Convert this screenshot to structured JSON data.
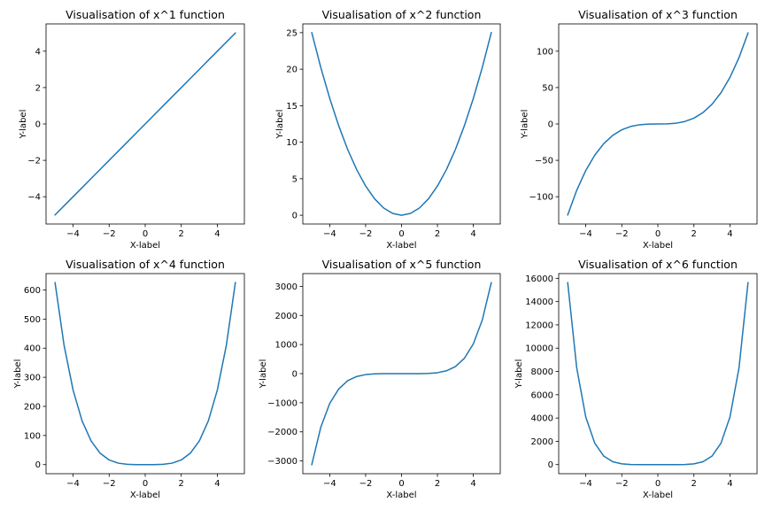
{
  "figure": {
    "background": "#ffffff",
    "line_color": "#1f77b4"
  },
  "chart_data": [
    {
      "type": "line",
      "title": "Visualisation of x^1 function",
      "xlabel": "X-label",
      "ylabel": "Y-label",
      "xlim": [
        -5.5,
        5.5
      ],
      "ylim": [
        -5.5,
        5.5
      ],
      "xticks": [
        -4,
        -2,
        0,
        2,
        4
      ],
      "xtick_labels": [
        "−4",
        "−2",
        "0",
        "2",
        "4"
      ],
      "yticks": [
        -4,
        -2,
        0,
        2,
        4
      ],
      "ytick_labels": [
        "−4",
        "−2",
        "0",
        "2",
        "4"
      ],
      "grid": false,
      "series": [
        {
          "x": [
            -5,
            -4.5,
            -4,
            -3.5,
            -3,
            -2.5,
            -2,
            -1.5,
            -1,
            -0.5,
            0,
            0.5,
            1,
            1.5,
            2,
            2.5,
            3,
            3.5,
            4,
            4.5,
            5
          ],
          "y": [
            -5,
            -4.5,
            -4,
            -3.5,
            -3,
            -2.5,
            -2,
            -1.5,
            -1,
            -0.5,
            0,
            0.5,
            1,
            1.5,
            2,
            2.5,
            3,
            3.5,
            4,
            4.5,
            5
          ]
        }
      ]
    },
    {
      "type": "line",
      "title": "Visualisation of x^2 function",
      "xlabel": "X-label",
      "ylabel": "Y-label",
      "xlim": [
        -5.5,
        5.5
      ],
      "ylim": [
        -1.2,
        26.2
      ],
      "xticks": [
        -4,
        -2,
        0,
        2,
        4
      ],
      "xtick_labels": [
        "−4",
        "−2",
        "0",
        "2",
        "4"
      ],
      "yticks": [
        0,
        5,
        10,
        15,
        20,
        25
      ],
      "ytick_labels": [
        "0",
        "5",
        "10",
        "15",
        "20",
        "25"
      ],
      "grid": false,
      "series": [
        {
          "x": [
            -5,
            -4.5,
            -4,
            -3.5,
            -3,
            -2.5,
            -2,
            -1.5,
            -1,
            -0.5,
            0,
            0.5,
            1,
            1.5,
            2,
            2.5,
            3,
            3.5,
            4,
            4.5,
            5
          ],
          "y": [
            25,
            20.25,
            16,
            12.25,
            9,
            6.25,
            4,
            2.25,
            1,
            0.25,
            0,
            0.25,
            1,
            2.25,
            4,
            6.25,
            9,
            12.25,
            16,
            20.25,
            25
          ]
        }
      ]
    },
    {
      "type": "line",
      "title": "Visualisation of x^3 function",
      "xlabel": "X-label",
      "ylabel": "Y-label",
      "xlim": [
        -5.5,
        5.5
      ],
      "ylim": [
        -137.5,
        137.5
      ],
      "xticks": [
        -4,
        -2,
        0,
        2,
        4
      ],
      "xtick_labels": [
        "−4",
        "−2",
        "0",
        "2",
        "4"
      ],
      "yticks": [
        -100,
        -50,
        0,
        50,
        100
      ],
      "ytick_labels": [
        "−100",
        "−50",
        "0",
        "50",
        "100"
      ],
      "grid": false,
      "series": [
        {
          "x": [
            -5,
            -4.5,
            -4,
            -3.5,
            -3,
            -2.5,
            -2,
            -1.5,
            -1,
            -0.5,
            0,
            0.5,
            1,
            1.5,
            2,
            2.5,
            3,
            3.5,
            4,
            4.5,
            5
          ],
          "y": [
            -125,
            -91.125,
            -64,
            -42.875,
            -27,
            -15.625,
            -8,
            -3.375,
            -1,
            -0.125,
            0,
            0.125,
            1,
            3.375,
            8,
            15.625,
            27,
            42.875,
            64,
            91.125,
            125
          ]
        }
      ]
    },
    {
      "type": "line",
      "title": "Visualisation of x^4 function",
      "xlabel": "X-label",
      "ylabel": "Y-label",
      "xlim": [
        -5.5,
        5.5
      ],
      "ylim": [
        -31.25,
        656.25
      ],
      "xticks": [
        -4,
        -2,
        0,
        2,
        4
      ],
      "xtick_labels": [
        "−4",
        "−2",
        "0",
        "2",
        "4"
      ],
      "yticks": [
        0,
        100,
        200,
        300,
        400,
        500,
        600
      ],
      "ytick_labels": [
        "0",
        "100",
        "200",
        "300",
        "400",
        "500",
        "600"
      ],
      "grid": false,
      "series": [
        {
          "x": [
            -5,
            -4.5,
            -4,
            -3.5,
            -3,
            -2.5,
            -2,
            -1.5,
            -1,
            -0.5,
            0,
            0.5,
            1,
            1.5,
            2,
            2.5,
            3,
            3.5,
            4,
            4.5,
            5
          ],
          "y": [
            625,
            410.06,
            256,
            150.06,
            81,
            39.06,
            16,
            5.06,
            1,
            0.06,
            0,
            0.06,
            1,
            5.06,
            16,
            39.06,
            81,
            150.06,
            256,
            410.06,
            625
          ]
        }
      ]
    },
    {
      "type": "line",
      "title": "Visualisation of x^5 function",
      "xlabel": "X-label",
      "ylabel": "Y-label",
      "xlim": [
        -5.5,
        5.5
      ],
      "ylim": [
        -3437.5,
        3437.5
      ],
      "xticks": [
        -4,
        -2,
        0,
        2,
        4
      ],
      "xtick_labels": [
        "−4",
        "−2",
        "0",
        "2",
        "4"
      ],
      "yticks": [
        -3000,
        -2000,
        -1000,
        0,
        1000,
        2000,
        3000
      ],
      "ytick_labels": [
        "−3000",
        "−2000",
        "−1000",
        "0",
        "1000",
        "2000",
        "3000"
      ],
      "grid": false,
      "series": [
        {
          "x": [
            -5,
            -4.5,
            -4,
            -3.5,
            -3,
            -2.5,
            -2,
            -1.5,
            -1,
            -0.5,
            0,
            0.5,
            1,
            1.5,
            2,
            2.5,
            3,
            3.5,
            4,
            4.5,
            5
          ],
          "y": [
            -3125,
            -1845.28,
            -1024,
            -525.22,
            -243,
            -97.66,
            -32,
            -7.59,
            -1,
            -0.03,
            0,
            0.03,
            1,
            7.59,
            32,
            97.66,
            243,
            525.22,
            1024,
            1845.28,
            3125
          ]
        }
      ]
    },
    {
      "type": "line",
      "title": "Visualisation of x^6 function",
      "xlabel": "X-label",
      "ylabel": "Y-label",
      "xlim": [
        -5.5,
        5.5
      ],
      "ylim": [
        -781.25,
        16406.25
      ],
      "xticks": [
        -4,
        -2,
        0,
        2,
        4
      ],
      "xtick_labels": [
        "−4",
        "−2",
        "0",
        "2",
        "4"
      ],
      "yticks": [
        0,
        2000,
        4000,
        6000,
        8000,
        10000,
        12000,
        14000,
        16000
      ],
      "ytick_labels": [
        "0",
        "2000",
        "4000",
        "6000",
        "8000",
        "10000",
        "12000",
        "14000",
        "16000"
      ],
      "grid": false,
      "series": [
        {
          "x": [
            -5,
            -4.5,
            -4,
            -3.5,
            -3,
            -2.5,
            -2,
            -1.5,
            -1,
            -0.5,
            0,
            0.5,
            1,
            1.5,
            2,
            2.5,
            3,
            3.5,
            4,
            4.5,
            5
          ],
          "y": [
            15625,
            8303.77,
            4096,
            1838.27,
            729,
            244.14,
            64,
            11.39,
            1,
            0.02,
            0,
            0.02,
            1,
            11.39,
            64,
            244.14,
            729,
            1838.27,
            4096,
            8303.77,
            15625
          ]
        }
      ]
    }
  ]
}
